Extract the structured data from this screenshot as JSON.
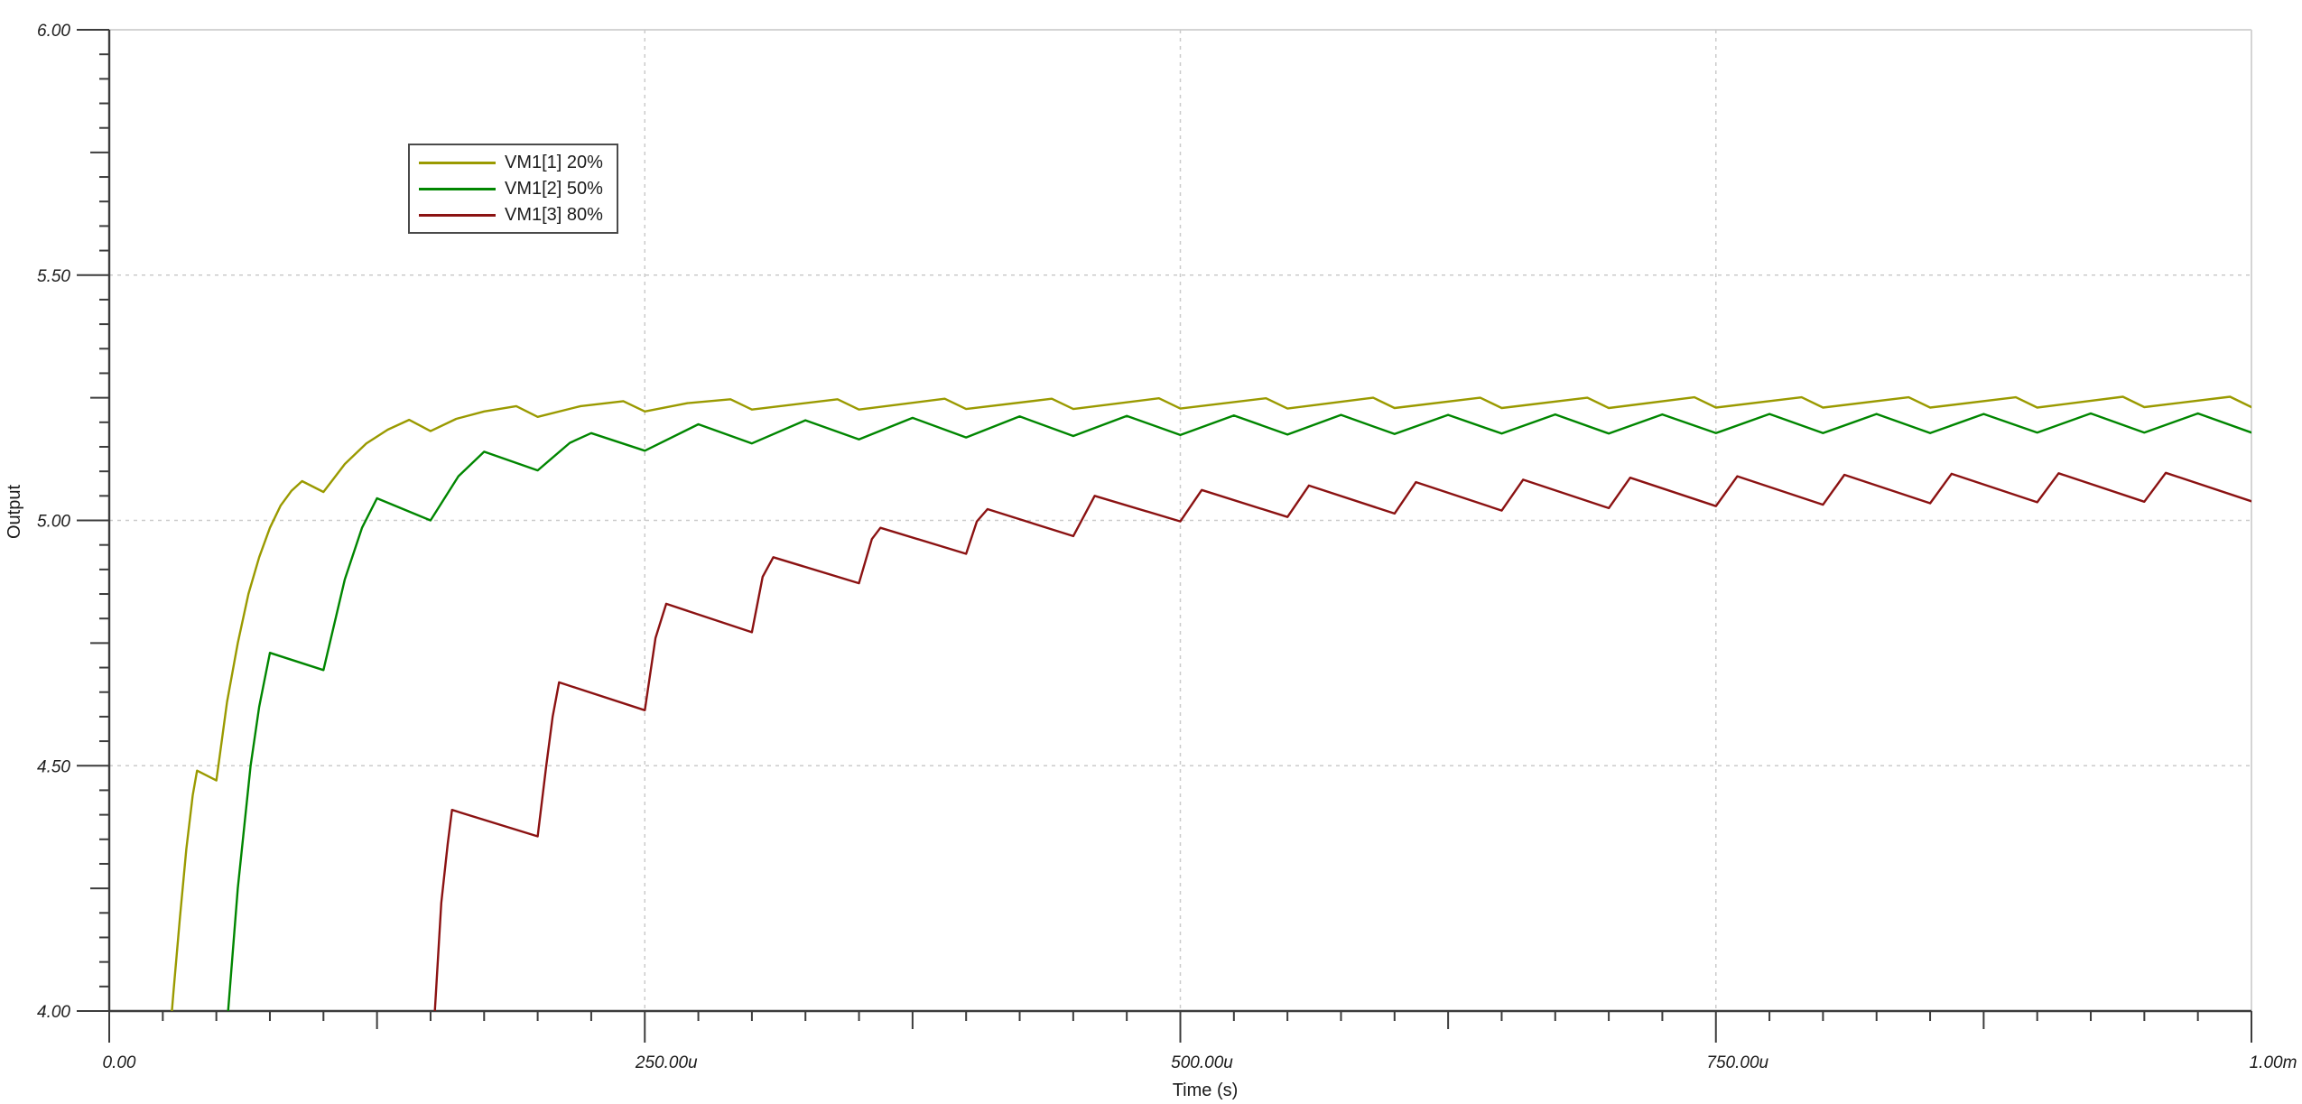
{
  "chart_data": {
    "type": "line",
    "title": "",
    "xlabel": "Time (s)",
    "ylabel": "Output",
    "xlim_us": [
      0,
      1000
    ],
    "ylim": [
      4.0,
      6.0
    ],
    "x_major_ticks_us": [
      0,
      250,
      500,
      750,
      1000
    ],
    "x_tick_labels": [
      "0.00",
      "250.00u",
      "500.00u",
      "750.00u",
      "1.00m"
    ],
    "x_minor_step_us": 25,
    "x_medium_step_us": 125,
    "y_major_ticks": [
      4.0,
      4.5,
      5.0,
      5.5,
      6.0
    ],
    "y_tick_labels": [
      "4.00",
      "4.50",
      "5.00",
      "5.50",
      "6.00"
    ],
    "y_minor_step": 0.05,
    "y_medium_step": 0.25,
    "grid": {
      "h_values": [
        4.5,
        5.0,
        5.5
      ],
      "v_values_us": [
        250,
        500,
        750
      ],
      "style": "dashed",
      "color": "#cbcbcb",
      "frame_color": "#d4d4d4",
      "axis_color": "#3c3c3c"
    },
    "legend": {
      "entries": [
        "VM1[1] 20%",
        "VM1[2] 50%",
        "VM1[3] 80%"
      ]
    },
    "series": [
      {
        "name": "VM1[1] 20%",
        "color": "#9a9a00",
        "ripple_period_us": 50,
        "points": [
          [
            25,
            3.78
          ],
          [
            27,
            3.88
          ],
          [
            30,
            4.04
          ],
          [
            33,
            4.19
          ],
          [
            36,
            4.33
          ],
          [
            39,
            4.44
          ],
          [
            41,
            4.49
          ],
          [
            50,
            4.47
          ],
          [
            55,
            4.63
          ],
          [
            60,
            4.75
          ],
          [
            65,
            4.85
          ],
          [
            70,
            4.925
          ],
          [
            75,
            4.985
          ],
          [
            80,
            5.03
          ],
          [
            85,
            5.06
          ],
          [
            90,
            5.08
          ],
          [
            100,
            5.058
          ],
          [
            110,
            5.115
          ],
          [
            120,
            5.157
          ],
          [
            130,
            5.185
          ],
          [
            140,
            5.205
          ],
          [
            150,
            5.182
          ],
          [
            162,
            5.207
          ],
          [
            175,
            5.222
          ],
          [
            190,
            5.233
          ],
          [
            200,
            5.211
          ],
          [
            220,
            5.233
          ],
          [
            240,
            5.243
          ],
          [
            250,
            5.222
          ],
          [
            270,
            5.239
          ],
          [
            290,
            5.247
          ],
          [
            300,
            5.226
          ],
          [
            340,
            5.247
          ],
          [
            350,
            5.226
          ],
          [
            390,
            5.248
          ],
          [
            400,
            5.227
          ],
          [
            440,
            5.248
          ],
          [
            450,
            5.227
          ],
          [
            490,
            5.249
          ],
          [
            500,
            5.228
          ],
          [
            540,
            5.249
          ],
          [
            550,
            5.228
          ],
          [
            590,
            5.25
          ],
          [
            600,
            5.229
          ],
          [
            640,
            5.25
          ],
          [
            650,
            5.229
          ],
          [
            690,
            5.25
          ],
          [
            700,
            5.229
          ],
          [
            740,
            5.251
          ],
          [
            750,
            5.23
          ],
          [
            790,
            5.251
          ],
          [
            800,
            5.23
          ],
          [
            840,
            5.251
          ],
          [
            850,
            5.23
          ],
          [
            890,
            5.251
          ],
          [
            900,
            5.23
          ],
          [
            940,
            5.252
          ],
          [
            950,
            5.231
          ],
          [
            990,
            5.252
          ],
          [
            1000,
            5.231
          ]
        ]
      },
      {
        "name": "VM1[2] 50%",
        "color": "#008600",
        "ripple_period_us": 50,
        "points": [
          [
            51,
            3.75
          ],
          [
            55.5,
            4.0
          ],
          [
            60,
            4.25
          ],
          [
            66,
            4.5
          ],
          [
            70,
            4.62
          ],
          [
            75,
            4.73
          ],
          [
            100,
            4.695
          ],
          [
            110,
            4.88
          ],
          [
            118,
            4.985
          ],
          [
            125,
            5.045
          ],
          [
            150,
            5.0
          ],
          [
            163,
            5.09
          ],
          [
            175,
            5.14
          ],
          [
            200,
            5.102
          ],
          [
            215,
            5.158
          ],
          [
            225,
            5.178
          ],
          [
            250,
            5.142
          ],
          [
            275,
            5.196
          ],
          [
            300,
            5.157
          ],
          [
            325,
            5.204
          ],
          [
            350,
            5.165
          ],
          [
            375,
            5.209
          ],
          [
            400,
            5.169
          ],
          [
            425,
            5.212
          ],
          [
            450,
            5.172
          ],
          [
            475,
            5.213
          ],
          [
            500,
            5.174
          ],
          [
            525,
            5.214
          ],
          [
            550,
            5.175
          ],
          [
            575,
            5.215
          ],
          [
            600,
            5.176
          ],
          [
            625,
            5.215
          ],
          [
            650,
            5.177
          ],
          [
            675,
            5.216
          ],
          [
            700,
            5.177
          ],
          [
            725,
            5.216
          ],
          [
            750,
            5.178
          ],
          [
            775,
            5.217
          ],
          [
            800,
            5.178
          ],
          [
            825,
            5.217
          ],
          [
            850,
            5.178
          ],
          [
            875,
            5.217
          ],
          [
            900,
            5.179
          ],
          [
            925,
            5.218
          ],
          [
            950,
            5.179
          ],
          [
            975,
            5.218
          ],
          [
            1000,
            5.179
          ]
        ]
      },
      {
        "name": "VM1[3] 80%",
        "color": "#8b1212",
        "ripple_period_us": 50,
        "points": [
          [
            150,
            3.75
          ],
          [
            152,
            4.0
          ],
          [
            155,
            4.22
          ],
          [
            158,
            4.34
          ],
          [
            160,
            4.41
          ],
          [
            200,
            4.356
          ],
          [
            204,
            4.5
          ],
          [
            207,
            4.6
          ],
          [
            210,
            4.67
          ],
          [
            250,
            4.613
          ],
          [
            255,
            4.76
          ],
          [
            260,
            4.83
          ],
          [
            300,
            4.772
          ],
          [
            305,
            4.885
          ],
          [
            310,
            4.925
          ],
          [
            350,
            4.872
          ],
          [
            356,
            4.962
          ],
          [
            360,
            4.985
          ],
          [
            400,
            4.932
          ],
          [
            405,
            4.998
          ],
          [
            410,
            5.023
          ],
          [
            450,
            4.968
          ],
          [
            460,
            5.05
          ],
          [
            500,
            4.998
          ],
          [
            510,
            5.062
          ],
          [
            550,
            5.007
          ],
          [
            560,
            5.071
          ],
          [
            600,
            5.014
          ],
          [
            610,
            5.078
          ],
          [
            650,
            5.02
          ],
          [
            660,
            5.083
          ],
          [
            700,
            5.025
          ],
          [
            710,
            5.087
          ],
          [
            750,
            5.029
          ],
          [
            760,
            5.09
          ],
          [
            800,
            5.032
          ],
          [
            810,
            5.093
          ],
          [
            850,
            5.035
          ],
          [
            860,
            5.095
          ],
          [
            900,
            5.037
          ],
          [
            910,
            5.096
          ],
          [
            950,
            5.038
          ],
          [
            960,
            5.097
          ],
          [
            1000,
            5.039
          ]
        ]
      }
    ]
  }
}
